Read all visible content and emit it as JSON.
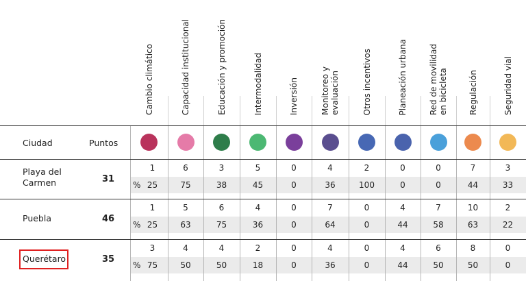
{
  "header": {
    "city_label": "Ciudad",
    "points_label": "Puntos",
    "percent_symbol": "%"
  },
  "categories": [
    {
      "label": "Cambio climático",
      "color": "#b9335c"
    },
    {
      "label": "Capacidad institucional",
      "color": "#e57ba8"
    },
    {
      "label": "Educación y promoción",
      "color": "#2e7d4a"
    },
    {
      "label": "Intermodalidad",
      "color": "#4cb873"
    },
    {
      "label": "Inversión",
      "color": "#7a3f9b"
    },
    {
      "label": "Monitoreo y\nevaluación",
      "color": "#5a4e8f"
    },
    {
      "label": "Otros incentivos",
      "color": "#4768b4"
    },
    {
      "label": "Planeación urbana",
      "color": "#4a63ad"
    },
    {
      "label": "Red de movilidad\nen bicicleta",
      "color": "#4aa0da"
    },
    {
      "label": "Regulación",
      "color": "#ec8a4e"
    },
    {
      "label": "Seguridad vial",
      "color": "#f2b857"
    }
  ],
  "rows": [
    {
      "city": "Playa del\nCarmen",
      "points": "31",
      "counts": [
        "1",
        "6",
        "3",
        "5",
        "0",
        "4",
        "2",
        "0",
        "0",
        "7",
        "3"
      ],
      "percents": [
        "25",
        "75",
        "38",
        "45",
        "0",
        "36",
        "100",
        "0",
        "0",
        "44",
        "33"
      ],
      "highlighted": false
    },
    {
      "city": "Puebla",
      "points": "46",
      "counts": [
        "1",
        "5",
        "6",
        "4",
        "0",
        "7",
        "0",
        "4",
        "7",
        "10",
        "2"
      ],
      "percents": [
        "25",
        "63",
        "75",
        "36",
        "0",
        "64",
        "0",
        "44",
        "58",
        "63",
        "22"
      ],
      "highlighted": false
    },
    {
      "city": "Querétaro",
      "points": "35",
      "counts": [
        "3",
        "4",
        "4",
        "2",
        "0",
        "4",
        "0",
        "4",
        "6",
        "8",
        "0"
      ],
      "percents": [
        "75",
        "50",
        "50",
        "18",
        "0",
        "36",
        "0",
        "44",
        "50",
        "50",
        "0"
      ],
      "highlighted": true
    }
  ]
}
